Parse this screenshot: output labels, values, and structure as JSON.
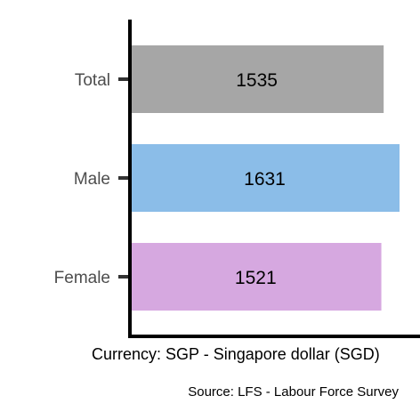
{
  "chart_data": {
    "type": "bar",
    "orientation": "horizontal",
    "categories": [
      "Total",
      "Male",
      "Female"
    ],
    "values": [
      1535,
      1631,
      1521
    ],
    "data_labels": [
      "1535",
      "1631",
      "1521"
    ],
    "colors": [
      "#a6a6a6",
      "#8bbde8",
      "#d6a8e0"
    ],
    "xlabel": "Currency: SGP - Singapore dollar (SGD)",
    "ylabel": "",
    "title": "",
    "caption": "Source:  LFS - Labour Force Survey",
    "xlim": [
      0,
      1631
    ],
    "grid": false,
    "legend": "none"
  }
}
